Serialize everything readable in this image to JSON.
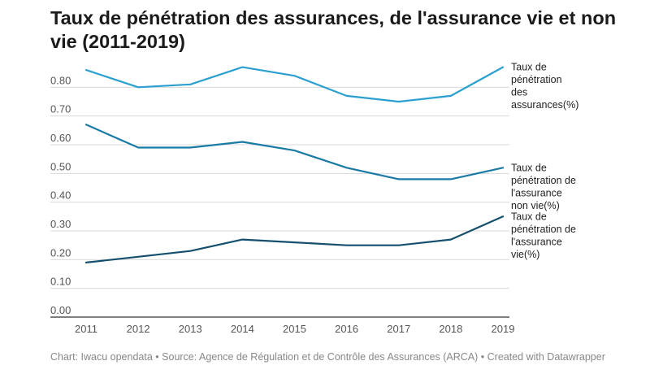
{
  "title": "Taux de pénétration des assurances, de l'assurance vie et non vie (2011-2019)",
  "footer": {
    "chart_label": "Chart:",
    "chart_value": "Iwacu opendata",
    "sep1": "•",
    "source_label": "Source:",
    "source_value": "Agence de Régulation et de Contrôle des Assurances (ARCA)",
    "sep2": "•",
    "credit": "Created with Datawrapper"
  },
  "chart_data": {
    "type": "line",
    "title": "Taux de pénétration des assurances, de l'assurance vie et non vie (2011-2019)",
    "x": [
      2011,
      2012,
      2013,
      2014,
      2015,
      2016,
      2017,
      2018,
      2019
    ],
    "ylim": [
      0,
      0.9
    ],
    "yticks": [
      "0.00",
      "0.10",
      "0.20",
      "0.30",
      "0.40",
      "0.50",
      "0.60",
      "0.70",
      "0.80"
    ],
    "grid": true,
    "legend": "direct labels at line ends (right)",
    "series": [
      {
        "name": "Taux de pénétration des assurances(%)",
        "label_lines": [
          "Taux de",
          "pénétration",
          "des",
          "assurances(%)"
        ],
        "color": "#2ba0d0",
        "values": [
          0.86,
          0.8,
          0.81,
          0.87,
          0.84,
          0.77,
          0.75,
          0.77,
          0.87
        ]
      },
      {
        "name": "Taux de pénétration de l'assurance non vie(%)",
        "label_lines": [
          "Taux de",
          "pénétration de",
          "l'assurance",
          "non vie(%)"
        ],
        "color": "#1a7aa6",
        "values": [
          0.67,
          0.59,
          0.59,
          0.61,
          0.58,
          0.52,
          0.48,
          0.48,
          0.52
        ]
      },
      {
        "name": "Taux de pénétration de l'assurance vie(%)",
        "label_lines": [
          "Taux de",
          "pénétration de",
          "l'assurance",
          "vie(%)"
        ],
        "color": "#14506e",
        "values": [
          0.19,
          0.21,
          0.23,
          0.27,
          0.26,
          0.25,
          0.25,
          0.27,
          0.35
        ]
      }
    ]
  }
}
